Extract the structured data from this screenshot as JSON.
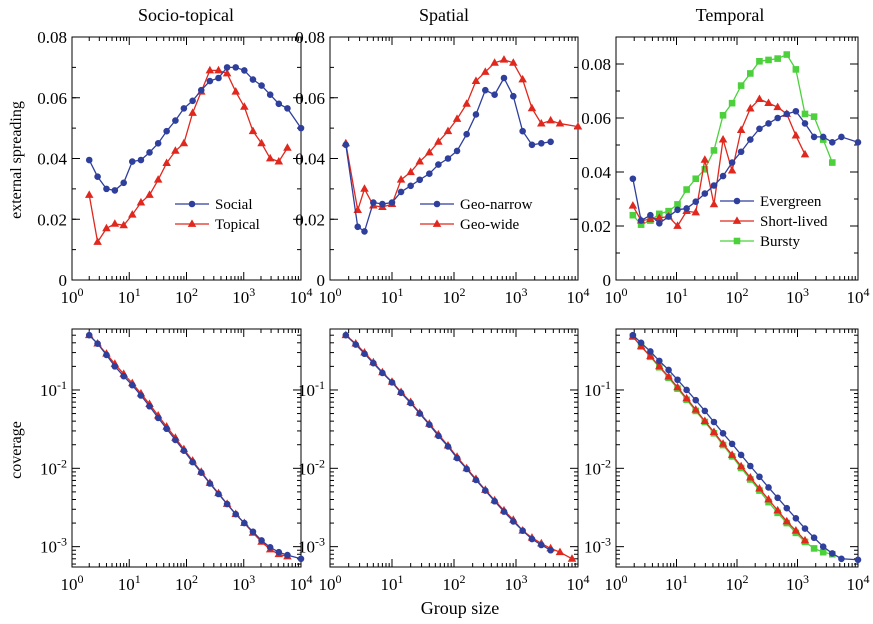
{
  "figure": {
    "column_titles": [
      "Socio-topical",
      "Spatial",
      "Temporal"
    ],
    "xlabel": "Group size",
    "row_ylabels": [
      "external spreading",
      "coverage"
    ]
  },
  "colors": {
    "blue": "#2f3f9c",
    "red": "#e0281e",
    "green": "#4cd13c"
  },
  "chart_data": [
    {
      "type": "line",
      "title": "Socio-topical",
      "ylabel": "external spreading",
      "xlabel": "",
      "xscale": "log",
      "xlim": [
        1,
        10000
      ],
      "xticks": [
        1,
        10,
        100,
        1000,
        10000
      ],
      "xtick_labels": [
        "10^0",
        "10^1",
        "10^2",
        "10^3",
        "10^4"
      ],
      "yscale": "linear",
      "ylim": [
        0,
        0.08
      ],
      "yticks": [
        0,
        0.02,
        0.04,
        0.06,
        0.08
      ],
      "ytick_labels": [
        "0",
        "0.02",
        "0.04",
        "0.06",
        "0.08"
      ],
      "legend_position": "bottom-right",
      "series": [
        {
          "name": "Social",
          "color": "blue",
          "marker": "circle",
          "x": [
            2,
            2.8,
            4,
            5.6,
            8,
            11.3,
            16,
            22.6,
            32,
            45,
            64,
            90,
            128,
            181,
            256,
            362,
            512,
            724,
            1024,
            1448,
            2048,
            2896,
            4096,
            5793,
            10000
          ],
          "y": [
            0.0395,
            0.034,
            0.03,
            0.0295,
            0.032,
            0.039,
            0.0395,
            0.042,
            0.045,
            0.049,
            0.0525,
            0.0565,
            0.059,
            0.0625,
            0.0655,
            0.0665,
            0.07,
            0.07,
            0.069,
            0.066,
            0.064,
            0.061,
            0.058,
            0.0565,
            0.05
          ]
        },
        {
          "name": "Topical",
          "color": "red",
          "marker": "triangle",
          "x": [
            2,
            2.8,
            4,
            5.6,
            8,
            11.3,
            16,
            22.6,
            32,
            45,
            64,
            90,
            128,
            181,
            256,
            362,
            512,
            724,
            1024,
            1448,
            2048,
            2896,
            4096,
            5793
          ],
          "y": [
            0.028,
            0.0125,
            0.017,
            0.0185,
            0.018,
            0.0215,
            0.0255,
            0.028,
            0.033,
            0.0385,
            0.0425,
            0.045,
            0.055,
            0.062,
            0.069,
            0.069,
            0.068,
            0.062,
            0.057,
            0.049,
            0.045,
            0.04,
            0.039,
            0.0435
          ]
        }
      ]
    },
    {
      "type": "line",
      "title": "Spatial",
      "ylabel": "",
      "xlabel": "",
      "xscale": "log",
      "xlim": [
        1,
        10000
      ],
      "xticks": [
        1,
        10,
        100,
        1000,
        10000
      ],
      "xtick_labels": [
        "10^0",
        "10^1",
        "10^2",
        "10^3",
        "10^4"
      ],
      "yscale": "linear",
      "ylim": [
        0,
        0.08
      ],
      "yticks": [
        0,
        0.02,
        0.04,
        0.06,
        0.08
      ],
      "ytick_labels": [
        "0",
        "0.02",
        "0.04",
        "0.06",
        "0.08"
      ],
      "legend_position": "bottom-right",
      "series": [
        {
          "name": "Geo-narrow",
          "color": "blue",
          "marker": "circle",
          "x": [
            1.8,
            2.8,
            3.6,
            5,
            7,
            10,
            14,
            20,
            28,
            40,
            56,
            80,
            112,
            160,
            226,
            320,
            452,
            640,
            905,
            1280,
            1810,
            2560,
            3620
          ],
          "y": [
            0.0445,
            0.0175,
            0.016,
            0.0255,
            0.025,
            0.0255,
            0.029,
            0.031,
            0.033,
            0.035,
            0.038,
            0.04,
            0.0425,
            0.048,
            0.0545,
            0.0625,
            0.061,
            0.0665,
            0.0605,
            0.049,
            0.0445,
            0.045,
            0.0455
          ]
        },
        {
          "name": "Geo-wide",
          "color": "red",
          "marker": "triangle",
          "x": [
            1.8,
            2.8,
            3.6,
            5,
            7,
            10,
            14,
            20,
            28,
            40,
            56,
            80,
            112,
            160,
            226,
            320,
            452,
            640,
            905,
            1280,
            1810,
            2560,
            3620,
            5120,
            10000
          ],
          "y": [
            0.045,
            0.023,
            0.03,
            0.0245,
            0.024,
            0.025,
            0.033,
            0.0355,
            0.039,
            0.042,
            0.0455,
            0.049,
            0.053,
            0.058,
            0.0655,
            0.0685,
            0.0715,
            0.0725,
            0.0715,
            0.066,
            0.0565,
            0.0515,
            0.0525,
            0.0515,
            0.0505
          ]
        }
      ]
    },
    {
      "type": "line",
      "title": "Temporal",
      "ylabel": "",
      "xlabel": "",
      "xscale": "log",
      "xlim": [
        1,
        10000
      ],
      "xticks": [
        1,
        10,
        100,
        1000,
        10000
      ],
      "xtick_labels": [
        "10^0",
        "10^1",
        "10^2",
        "10^3",
        "10^4"
      ],
      "yscale": "linear",
      "ylim": [
        0,
        0.09
      ],
      "yticks": [
        0,
        0.02,
        0.04,
        0.06,
        0.08
      ],
      "ytick_labels": [
        "0",
        "0.02",
        "0.04",
        "0.06",
        "0.08"
      ],
      "legend_position": "bottom-right",
      "series": [
        {
          "name": "Evergreen",
          "color": "blue",
          "marker": "circle",
          "x": [
            1.9,
            2.6,
            3.7,
            5.2,
            7.4,
            10.4,
            14.7,
            20.8,
            29.4,
            41.6,
            58.8,
            83,
            117,
            166,
            235,
            332,
            470,
            665,
            940,
            1330,
            1880,
            2660,
            3760,
            5320,
            10000
          ],
          "y": [
            0.0375,
            0.022,
            0.024,
            0.021,
            0.0235,
            0.026,
            0.0265,
            0.029,
            0.032,
            0.035,
            0.0385,
            0.0435,
            0.0475,
            0.052,
            0.056,
            0.058,
            0.06,
            0.0615,
            0.0625,
            0.058,
            0.053,
            0.053,
            0.051,
            0.053,
            0.051
          ]
        },
        {
          "name": "Short-lived",
          "color": "red",
          "marker": "triangle",
          "x": [
            1.9,
            2.6,
            3.7,
            5.2,
            7.4,
            10.4,
            14.7,
            20.8,
            29.4,
            41.6,
            58.8,
            83,
            117,
            166,
            235,
            332,
            470,
            665,
            940,
            1330
          ],
          "y": [
            0.0275,
            0.022,
            0.0225,
            0.023,
            0.0235,
            0.02,
            0.0255,
            0.025,
            0.0445,
            0.028,
            0.052,
            0.0405,
            0.0555,
            0.0635,
            0.067,
            0.0655,
            0.064,
            0.0615,
            0.0535,
            0.0465
          ]
        },
        {
          "name": "Bursty",
          "color": "green",
          "marker": "square",
          "x": [
            1.9,
            2.6,
            3.7,
            5.2,
            7.4,
            10.4,
            14.7,
            20.8,
            29.4,
            41.6,
            58.8,
            83,
            117,
            166,
            235,
            332,
            470,
            665,
            940,
            1330,
            1880,
            2660,
            3760
          ],
          "y": [
            0.024,
            0.0205,
            0.022,
            0.0245,
            0.0255,
            0.028,
            0.0335,
            0.0375,
            0.041,
            0.048,
            0.061,
            0.0655,
            0.072,
            0.0765,
            0.081,
            0.0815,
            0.082,
            0.0835,
            0.078,
            0.0615,
            0.0605,
            0.052,
            0.0435
          ]
        }
      ]
    },
    {
      "type": "line",
      "title": "",
      "ylabel": "coverage",
      "xlabel": "",
      "xscale": "log",
      "xlim": [
        1,
        10000
      ],
      "xticks": [
        1,
        10,
        100,
        1000,
        10000
      ],
      "xtick_labels": [
        "10^0",
        "10^1",
        "10^2",
        "10^3",
        "10^4"
      ],
      "yscale": "log",
      "ylim": [
        0.00055,
        0.6
      ],
      "yticks": [
        0.001,
        0.01,
        0.1
      ],
      "ytick_labels": [
        "10^-3",
        "10^-2",
        "10^-1"
      ],
      "series": [
        {
          "name": "Social",
          "color": "blue",
          "marker": "circle",
          "x": [
            2,
            2.8,
            4,
            5.6,
            8,
            11.3,
            16,
            22.6,
            32,
            45,
            64,
            90,
            128,
            181,
            256,
            362,
            512,
            724,
            1024,
            1448,
            2048,
            2896,
            4096,
            5793,
            10000
          ],
          "y": [
            0.5,
            0.39,
            0.28,
            0.2,
            0.15,
            0.115,
            0.085,
            0.062,
            0.044,
            0.032,
            0.023,
            0.0168,
            0.012,
            0.0088,
            0.0064,
            0.0047,
            0.0035,
            0.0026,
            0.002,
            0.00155,
            0.0012,
            0.00098,
            0.00085,
            0.00078,
            0.0007
          ]
        },
        {
          "name": "Topical",
          "color": "red",
          "marker": "triangle",
          "x": [
            2,
            2.8,
            4,
            5.6,
            8,
            11.3,
            16,
            22.6,
            32,
            45,
            64,
            90,
            128,
            181,
            256,
            362,
            512,
            724,
            1024,
            1448,
            2048,
            2896,
            4096,
            5793
          ],
          "y": [
            0.5,
            0.39,
            0.29,
            0.215,
            0.16,
            0.122,
            0.09,
            0.066,
            0.047,
            0.034,
            0.0245,
            0.0175,
            0.0125,
            0.009,
            0.0065,
            0.0048,
            0.0035,
            0.0026,
            0.002,
            0.0015,
            0.00115,
            0.00092,
            0.0008,
            0.00075
          ]
        }
      ]
    },
    {
      "type": "line",
      "title": "",
      "ylabel": "",
      "xlabel": "",
      "xscale": "log",
      "xlim": [
        1,
        10000
      ],
      "xticks": [
        1,
        10,
        100,
        1000,
        10000
      ],
      "xtick_labels": [
        "10^0",
        "10^1",
        "10^2",
        "10^3",
        "10^4"
      ],
      "yscale": "log",
      "ylim": [
        0.00055,
        0.6
      ],
      "yticks": [
        0.001,
        0.01,
        0.1
      ],
      "ytick_labels": [
        "10^-3",
        "10^-2",
        "10^-1"
      ],
      "series": [
        {
          "name": "Geo-narrow",
          "color": "blue",
          "marker": "circle",
          "x": [
            1.8,
            2.6,
            3.6,
            5,
            7,
            10,
            14,
            20,
            28,
            40,
            56,
            80,
            112,
            160,
            226,
            320,
            452,
            640,
            905,
            1280,
            1810,
            2560,
            3620
          ],
          "y": [
            0.5,
            0.38,
            0.29,
            0.22,
            0.165,
            0.125,
            0.092,
            0.068,
            0.05,
            0.036,
            0.026,
            0.019,
            0.0135,
            0.0098,
            0.0071,
            0.0052,
            0.0038,
            0.0028,
            0.0021,
            0.0016,
            0.00125,
            0.00105,
            0.0009
          ]
        },
        {
          "name": "Geo-wide",
          "color": "red",
          "marker": "triangle",
          "x": [
            1.8,
            2.6,
            3.6,
            5,
            7,
            10,
            14,
            20,
            28,
            40,
            56,
            80,
            112,
            160,
            226,
            320,
            452,
            640,
            905,
            1280,
            1810,
            2560,
            3620,
            5120,
            8000
          ],
          "y": [
            0.5,
            0.39,
            0.3,
            0.225,
            0.168,
            0.127,
            0.094,
            0.07,
            0.051,
            0.037,
            0.027,
            0.0195,
            0.014,
            0.01,
            0.0073,
            0.0053,
            0.0039,
            0.0029,
            0.0022,
            0.0016,
            0.0013,
            0.0011,
            0.00095,
            0.00085,
            0.0007
          ]
        }
      ]
    },
    {
      "type": "line",
      "title": "",
      "ylabel": "",
      "xlabel": "",
      "xscale": "log",
      "xlim": [
        1,
        10000
      ],
      "xticks": [
        1,
        10,
        100,
        1000,
        10000
      ],
      "xtick_labels": [
        "10^0",
        "10^1",
        "10^2",
        "10^3",
        "10^4"
      ],
      "yscale": "log",
      "ylim": [
        0.00055,
        0.6
      ],
      "yticks": [
        0.001,
        0.01,
        0.1
      ],
      "ytick_labels": [
        "10^-3",
        "10^-2",
        "10^-1"
      ],
      "series": [
        {
          "name": "Evergreen",
          "color": "blue",
          "marker": "circle",
          "x": [
            1.9,
            2.6,
            3.7,
            5.2,
            7.4,
            10.4,
            14.7,
            20.8,
            29.4,
            41.6,
            58.8,
            83,
            117,
            166,
            235,
            332,
            470,
            665,
            940,
            1330,
            1880,
            2660,
            3760,
            5320,
            10000
          ],
          "y": [
            0.5,
            0.4,
            0.31,
            0.235,
            0.18,
            0.135,
            0.1,
            0.074,
            0.054,
            0.039,
            0.028,
            0.0205,
            0.0148,
            0.0107,
            0.0078,
            0.0057,
            0.0042,
            0.0031,
            0.0023,
            0.0017,
            0.0013,
            0.001,
            0.00082,
            0.0007,
            0.00068
          ]
        },
        {
          "name": "Short-lived",
          "color": "red",
          "marker": "triangle",
          "x": [
            1.9,
            2.6,
            3.7,
            5.2,
            7.4,
            10.4,
            14.7,
            20.8,
            29.4,
            41.6,
            58.8,
            83,
            117,
            166,
            235,
            332,
            470,
            665,
            940,
            1330
          ],
          "y": [
            0.48,
            0.36,
            0.27,
            0.2,
            0.148,
            0.108,
            0.078,
            0.056,
            0.04,
            0.029,
            0.0205,
            0.0148,
            0.0106,
            0.0076,
            0.0055,
            0.004,
            0.0029,
            0.0021,
            0.0016,
            0.0012
          ]
        },
        {
          "name": "Bursty",
          "color": "green",
          "marker": "square",
          "x": [
            1.9,
            2.6,
            3.7,
            5.2,
            7.4,
            10.4,
            14.7,
            20.8,
            29.4,
            41.6,
            58.8,
            83,
            117,
            166,
            235,
            332,
            470,
            665,
            940,
            1330,
            1880,
            2660,
            3760
          ],
          "y": [
            0.48,
            0.36,
            0.265,
            0.195,
            0.143,
            0.104,
            0.075,
            0.054,
            0.039,
            0.028,
            0.0198,
            0.0142,
            0.0101,
            0.0072,
            0.0052,
            0.0037,
            0.0027,
            0.002,
            0.0015,
            0.00115,
            0.00095,
            0.00085,
            0.0008
          ]
        }
      ]
    }
  ]
}
